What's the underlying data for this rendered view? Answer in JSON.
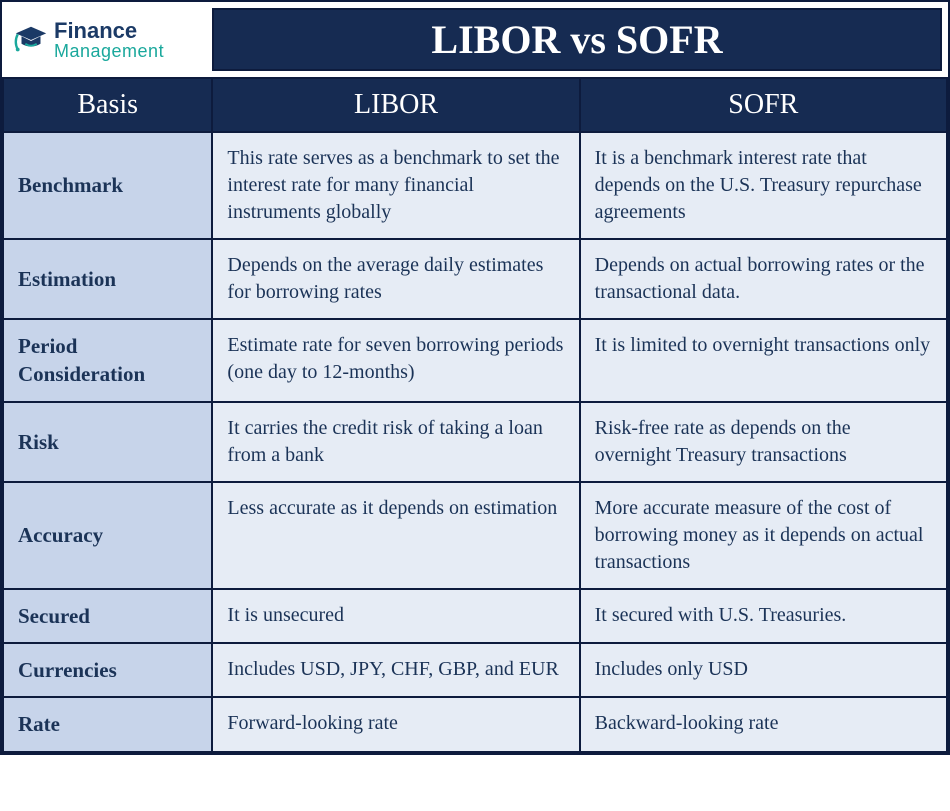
{
  "logo": {
    "line1": "Finance",
    "line2": "Management",
    "cap_color": "#1b3a66",
    "accent_color": "#1aa89c"
  },
  "title": "LIBOR vs SOFR",
  "colors": {
    "header_bg": "#162b52",
    "header_text": "#ffffff",
    "border": "#0d1b3d",
    "basis_bg": "#c7d4ea",
    "cell_bg": "#e6ecf5",
    "body_text": "#1b3357"
  },
  "columns": {
    "basis": "Basis",
    "libor": "LIBOR",
    "sofr": "SOFR"
  },
  "rows": [
    {
      "basis": "Benchmark",
      "libor": "This rate serves as a benchmark to set the interest rate for many financial instruments globally",
      "sofr": "It is a benchmark interest rate that depends on the U.S. Treasury repurchase agreements"
    },
    {
      "basis": "Estimation",
      "libor": "Depends on the average daily estimates for borrowing rates",
      "sofr": "Depends on actual borrowing rates or the transactional data."
    },
    {
      "basis": "Period Consideration",
      "libor": "Estimate rate for seven borrowing periods (one day to 12-months)",
      "sofr": "It is limited to overnight transactions only"
    },
    {
      "basis": "Risk",
      "libor": "It carries the credit risk of taking a loan from a bank",
      "sofr": "Risk-free rate as depends on the overnight Treasury transactions"
    },
    {
      "basis": "Accuracy",
      "libor": "Less accurate as it depends on estimation",
      "sofr": "More accurate measure of the cost of borrowing money as it depends on actual transactions"
    },
    {
      "basis": "Secured",
      "libor": "It is unsecured",
      "sofr": "It secured with U.S. Treasuries."
    },
    {
      "basis": "Currencies",
      "libor": "Includes USD, JPY, CHF, GBP, and EUR",
      "sofr": "Includes only USD"
    },
    {
      "basis": "Rate",
      "libor": "Forward-looking rate",
      "sofr": "Backward-looking rate"
    }
  ]
}
